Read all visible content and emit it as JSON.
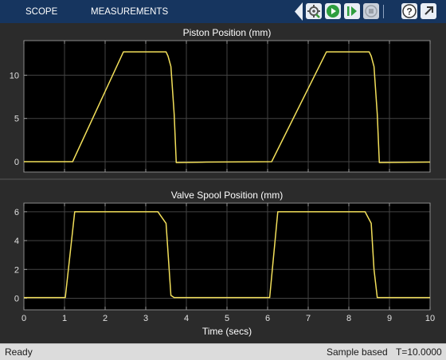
{
  "toolbar": {
    "tabs": [
      "SCOPE",
      "MEASUREMENTS"
    ],
    "icons": [
      "settings-icon",
      "run-icon",
      "step-forward-icon",
      "stop-icon",
      "help-icon",
      "undock-icon"
    ]
  },
  "colors": {
    "toolbar": "#16355f",
    "trace": "#f2df5a",
    "axes_bg": "#000000",
    "panel_bg": "#2b2b2b",
    "grid": "#444444"
  },
  "chart_data": [
    {
      "type": "line",
      "title": "Piston Position (mm)",
      "xlabel": "",
      "ylabel": "",
      "xlim": [
        0,
        10
      ],
      "ylim": [
        -1.2,
        14
      ],
      "yticks": [
        0,
        5,
        10
      ],
      "xticks": [
        0,
        1,
        2,
        3,
        4,
        5,
        6,
        7,
        8,
        9,
        10
      ],
      "grid": true,
      "series": [
        {
          "x": [
            0,
            1.2,
            2.45,
            3.5,
            3.55,
            3.62,
            3.7,
            3.75,
            4.5,
            6.1,
            7.45,
            8.5,
            8.55,
            8.62,
            8.7,
            8.75,
            10
          ],
          "y": [
            0,
            0,
            12.7,
            12.7,
            12.2,
            11,
            5.5,
            -0.1,
            -0.05,
            0,
            12.7,
            12.7,
            12.2,
            11,
            5.5,
            -0.1,
            -0.05
          ]
        }
      ]
    },
    {
      "type": "line",
      "title": "Valve Spool Position (mm)",
      "xlabel": "Time (secs)",
      "ylabel": "",
      "xlim": [
        0,
        10
      ],
      "ylim": [
        -0.8,
        6.6
      ],
      "yticks": [
        0,
        2,
        4,
        6
      ],
      "xticks": [
        0,
        1,
        2,
        3,
        4,
        5,
        6,
        7,
        8,
        9,
        10
      ],
      "grid": true,
      "series": [
        {
          "x": [
            0,
            1.02,
            1.25,
            3.3,
            3.5,
            3.62,
            3.7,
            4.8,
            6.05,
            6.25,
            8.4,
            8.55,
            8.62,
            8.7,
            10
          ],
          "y": [
            0.05,
            0.05,
            6,
            6,
            5.2,
            0.2,
            0.05,
            0.05,
            0.05,
            6,
            6,
            5.2,
            2,
            0.05,
            0.05
          ]
        }
      ]
    }
  ],
  "status": {
    "left": "Ready",
    "mode": "Sample based",
    "time": "T=10.0000"
  }
}
